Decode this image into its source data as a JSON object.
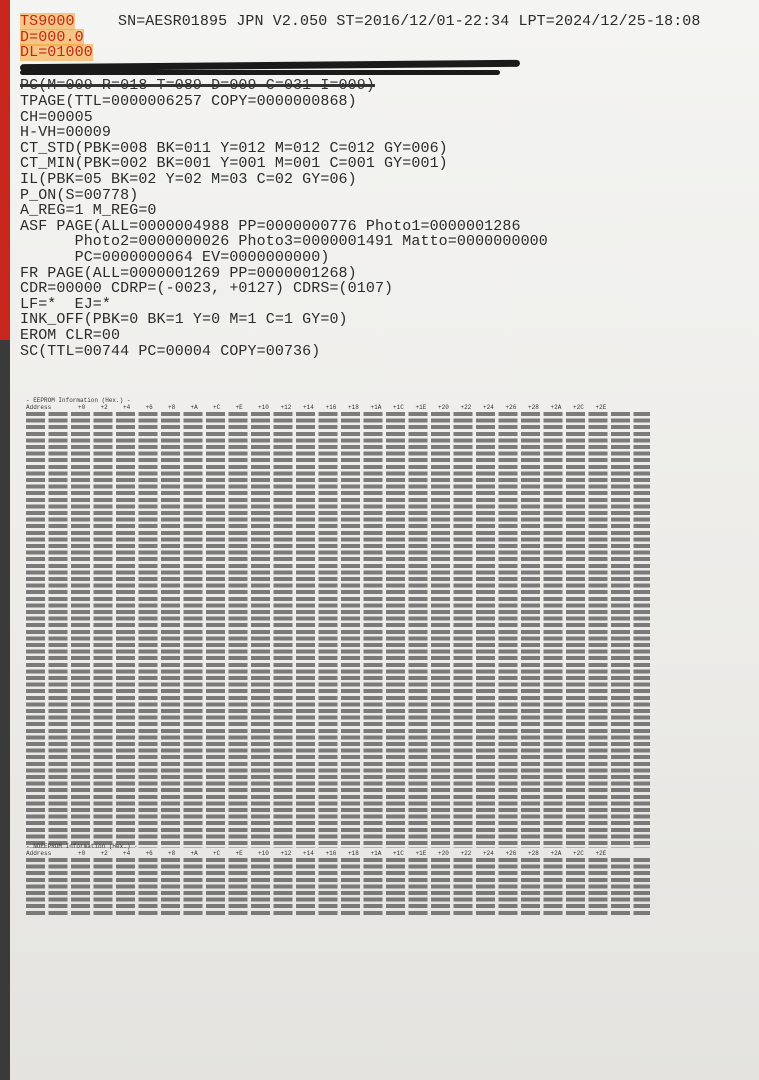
{
  "header": {
    "model": "TS9000",
    "info": "SN=AESR01895 JPN V2.050 ST=2016/12/01-22:34 LPT=2024/12/25-18:08",
    "d": "D=000.0",
    "dl": "DL=01000"
  },
  "struck_line": "PC(M=009 R=018 T=089 D=009 C=031 I=009)",
  "lines": [
    "TPAGE(TTL=0000006257 COPY=0000000868)",
    "CH=00005",
    "H-VH=00009",
    "CT_STD(PBK=008 BK=011 Y=012 M=012 C=012 GY=006)",
    "CT_MIN(PBK=002 BK=001 Y=001 M=001 C=001 GY=001)",
    "IL(PBK=05 BK=02 Y=02 M=03 C=02 GY=06)",
    "P_ON(S=00778)",
    "A_REG=1 M_REG=0",
    "ASF PAGE(ALL=0000004988 PP=0000000776 Photo1=0000001286",
    "      Photo2=0000000026 Photo3=0000001491 Matto=0000000000",
    "      PC=0000000064 EV=0000000000)",
    "FR PAGE(ALL=0000001269 PP=0000001268)",
    "CDR=00000 CDRP=(-0023, +0127) CDRS=(0107)",
    "LF=*  EJ=*",
    "INK_OFF(PBK=0 BK=1 Y=0 M=1 C=1 GY=0)",
    "EROM CLR=00",
    "SC(TTL=00744 PC=00004 COPY=00736)"
  ],
  "dumps": [
    {
      "title": "- EEPROM Information (Hex.) -",
      "address_label": "Address",
      "columns": [
        "+0",
        "+2",
        "+4",
        "+6",
        "+8",
        "+A",
        "+C",
        "+E",
        "+10",
        "+12",
        "+14",
        "+16",
        "+18",
        "+1A",
        "+1C",
        "+1E",
        "+20",
        "+22",
        "+24",
        "+26",
        "+28",
        "+2A",
        "+2C",
        "+2E"
      ]
    },
    {
      "title": "- NOEEPROM Information (Hex.) -",
      "address_label": "Address",
      "columns": [
        "+0",
        "+2",
        "+4",
        "+6",
        "+8",
        "+A",
        "+C",
        "+E",
        "+10",
        "+12",
        "+14",
        "+16",
        "+18",
        "+1A",
        "+1C",
        "+1E",
        "+20",
        "+22",
        "+24",
        "+26",
        "+28",
        "+2A",
        "+2C",
        "+2E"
      ]
    }
  ]
}
